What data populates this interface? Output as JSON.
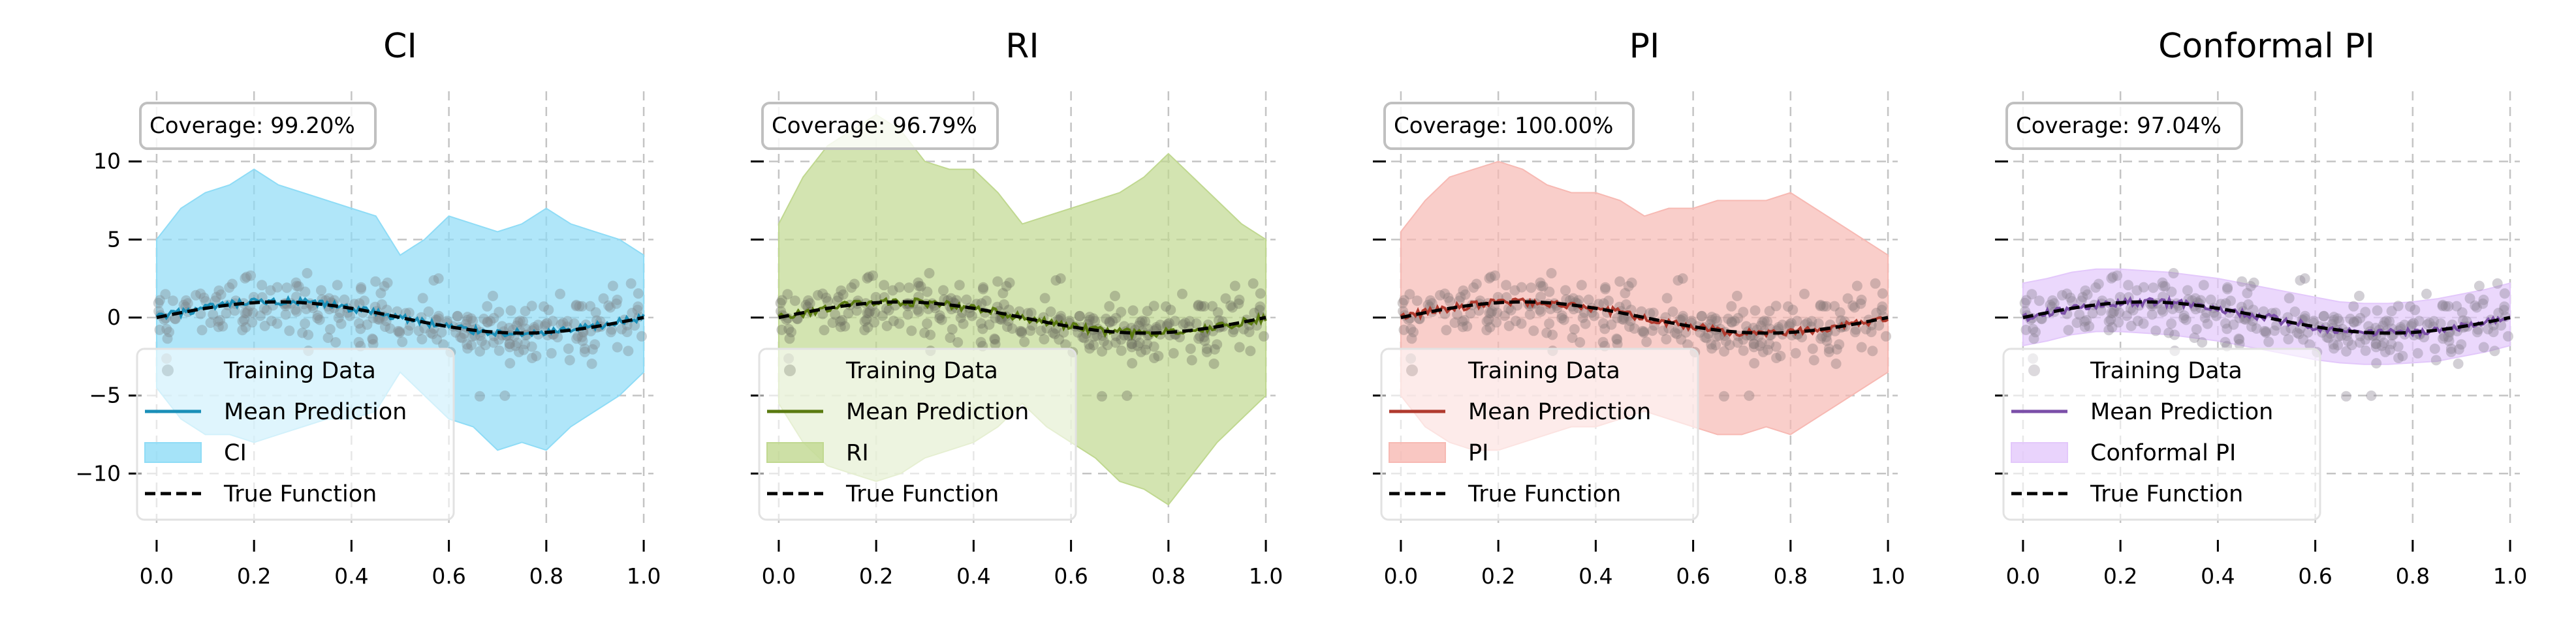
{
  "figure": {
    "shared_x": {
      "ticks": [
        0.0,
        0.2,
        0.4,
        0.6,
        0.8,
        1.0
      ],
      "tick_labels": [
        "0.0",
        "0.2",
        "0.4",
        "0.6",
        "0.8",
        "1.0"
      ],
      "xlim": [
        -0.02,
        1.02
      ]
    },
    "shared_y": {
      "ticks": [
        -10,
        -5,
        0,
        5,
        10
      ],
      "tick_labels": [
        "−10",
        "−5",
        "0",
        "5",
        "10"
      ],
      "ylim": [
        -13.5,
        14.5
      ]
    },
    "grid": true,
    "legend_labels": {
      "training": "Training Data",
      "mean": "Mean Prediction",
      "true": "True Function"
    }
  },
  "chart_data": [
    {
      "type": "scatter",
      "title": "CI",
      "coverage_label": "Coverage: 99.20%",
      "interval_label": "CI",
      "colors": {
        "line": "#1a8fb8",
        "band": "#8fdcf6",
        "points": "#7f8a8f"
      },
      "band": {
        "x": [
          0.0,
          0.05,
          0.1,
          0.15,
          0.2,
          0.25,
          0.3,
          0.35,
          0.4,
          0.45,
          0.5,
          0.55,
          0.6,
          0.65,
          0.7,
          0.75,
          0.8,
          0.85,
          0.9,
          0.95,
          1.0
        ],
        "upper": [
          5.0,
          7.0,
          8.0,
          8.5,
          9.5,
          8.5,
          8.0,
          7.5,
          7.0,
          6.5,
          4.0,
          5.0,
          6.5,
          6.0,
          5.5,
          6.0,
          7.0,
          6.0,
          5.5,
          5.0,
          4.0
        ],
        "lower": [
          -4.5,
          -6.5,
          -7.5,
          -7.5,
          -8.0,
          -7.5,
          -7.0,
          -6.5,
          -6.5,
          -6.0,
          -3.5,
          -5.0,
          -6.5,
          -7.0,
          -8.5,
          -8.0,
          -8.5,
          -7.0,
          -6.0,
          -5.0,
          -3.5
        ]
      },
      "legend_location": "lower-left"
    },
    {
      "type": "scatter",
      "title": "RI",
      "coverage_label": "Coverage: 96.79%",
      "interval_label": "RI",
      "colors": {
        "line": "#5a7a10",
        "band": "#c0d890",
        "points": "#6e7060"
      },
      "band": {
        "x": [
          0.0,
          0.05,
          0.1,
          0.15,
          0.2,
          0.25,
          0.3,
          0.35,
          0.4,
          0.45,
          0.5,
          0.55,
          0.6,
          0.65,
          0.7,
          0.75,
          0.8,
          0.85,
          0.9,
          0.95,
          1.0
        ],
        "upper": [
          6.0,
          9.0,
          11.0,
          12.0,
          13.0,
          12.0,
          10.0,
          9.5,
          9.5,
          8.0,
          6.0,
          6.5,
          7.0,
          7.5,
          8.0,
          9.0,
          10.5,
          9.0,
          7.5,
          6.0,
          5.0
        ],
        "lower": [
          -5.5,
          -8.0,
          -9.5,
          -10.0,
          -10.5,
          -10.0,
          -9.0,
          -8.5,
          -8.0,
          -7.0,
          -5.5,
          -7.0,
          -8.0,
          -9.0,
          -10.5,
          -11.0,
          -12.0,
          -10.0,
          -8.0,
          -6.5,
          -5.0
        ]
      },
      "legend_location": "lower-left"
    },
    {
      "type": "scatter",
      "title": "PI",
      "coverage_label": "Coverage: 100.00%",
      "interval_label": "PI",
      "colors": {
        "line": "#b03a2e",
        "band": "#f7b9b3",
        "points": "#8a7a78"
      },
      "band": {
        "x": [
          0.0,
          0.05,
          0.1,
          0.15,
          0.2,
          0.25,
          0.3,
          0.35,
          0.4,
          0.45,
          0.5,
          0.55,
          0.6,
          0.65,
          0.7,
          0.75,
          0.8,
          0.85,
          0.9,
          0.95,
          1.0
        ],
        "upper": [
          5.5,
          7.5,
          9.0,
          9.5,
          10.0,
          9.5,
          8.5,
          8.0,
          8.0,
          7.5,
          6.5,
          7.0,
          7.0,
          7.5,
          7.5,
          7.5,
          8.0,
          7.0,
          6.0,
          5.0,
          4.0
        ],
        "lower": [
          -5.0,
          -7.0,
          -8.0,
          -8.5,
          -8.5,
          -8.0,
          -7.5,
          -7.0,
          -7.0,
          -6.5,
          -6.0,
          -6.5,
          -7.0,
          -7.5,
          -7.5,
          -7.0,
          -7.5,
          -6.5,
          -5.5,
          -4.5,
          -3.5
        ]
      },
      "legend_location": "lower-left"
    },
    {
      "type": "scatter",
      "title": "Conformal PI",
      "coverage_label": "Coverage: 97.04%",
      "interval_label": "Conformal PI",
      "colors": {
        "line": "#7b4fa8",
        "band": "#e3c8fb",
        "points": "#8a8090"
      },
      "band": {
        "x": [
          0.0,
          0.05,
          0.1,
          0.15,
          0.2,
          0.25,
          0.3,
          0.35,
          0.4,
          0.45,
          0.5,
          0.55,
          0.6,
          0.65,
          0.7,
          0.75,
          0.8,
          0.85,
          0.9,
          0.95,
          1.0
        ],
        "upper": [
          2.2,
          2.5,
          2.9,
          3.1,
          3.1,
          3.0,
          2.9,
          2.7,
          2.5,
          2.2,
          1.9,
          1.6,
          1.3,
          1.0,
          0.9,
          0.9,
          1.0,
          1.2,
          1.5,
          1.8,
          2.2
        ],
        "lower": [
          -1.8,
          -1.5,
          -1.1,
          -0.9,
          -0.9,
          -1.0,
          -1.1,
          -1.3,
          -1.5,
          -1.8,
          -2.1,
          -2.4,
          -2.7,
          -2.9,
          -3.0,
          -3.0,
          -2.9,
          -2.8,
          -2.5,
          -2.2,
          -1.8
        ]
      },
      "legend_location": "lower-left"
    }
  ]
}
